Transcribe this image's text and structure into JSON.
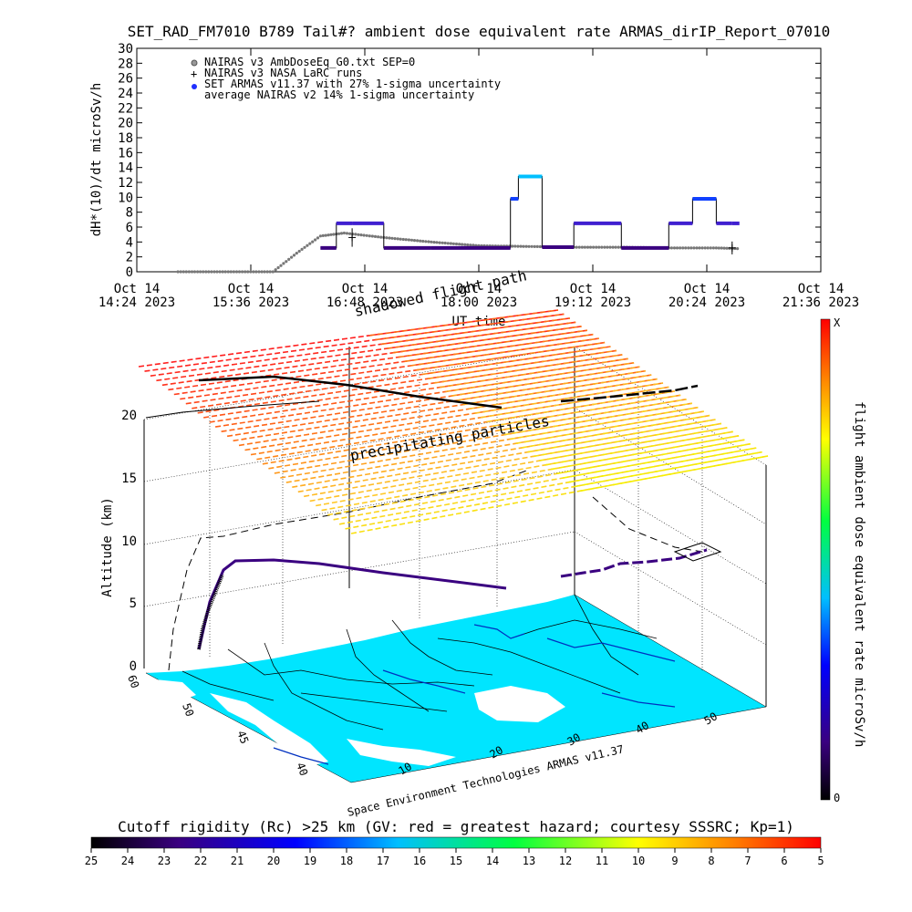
{
  "title": "SET_RAD_FM7010  B789 Tail#? ambient dose equivalent rate ARMAS_dirIP_Report_07010",
  "top_chart": {
    "ylabel": "dH*(10)/dt microSv/h",
    "xlabel": "UT time",
    "legend": [
      "NAIRAS v3 AmbDoseEq_G0.txt SEP=0",
      "NAIRAS v3 NASA LaRC runs",
      "SET ARMAS v11.37 with 27% 1-sigma uncertainty",
      "average NAIRAS v2 14% 1-sigma uncertainty"
    ],
    "y_ticks": [
      "30",
      "28",
      "26",
      "24",
      "22",
      "20",
      "18",
      "16",
      "14",
      "12",
      "10",
      "8",
      "6",
      "4",
      "2",
      "0"
    ],
    "x_ticks": [
      {
        "date": "Oct 14",
        "time": "14:24 2023"
      },
      {
        "date": "Oct 14",
        "time": "15:36 2023"
      },
      {
        "date": "Oct 14",
        "time": "16:48 2023"
      },
      {
        "date": "Oct 14",
        "time": "18:00 2023"
      },
      {
        "date": "Oct 14",
        "time": "19:12 2023"
      },
      {
        "date": "Oct 14",
        "time": "20:24 2023"
      },
      {
        "date": "Oct 14",
        "time": "21:36 2023"
      }
    ]
  },
  "chart_data": {
    "type": "scatter",
    "title": "SET_RAD_FM7010  B789 Tail#? ambient dose equivalent rate ARMAS_dirIP_Report_07010",
    "xlabel": "UT time",
    "ylabel": "dH*(10)/dt microSv/h",
    "ylim": [
      0,
      30
    ],
    "xlim": [
      "2023-10-14T14:24",
      "2023-10-14T21:36"
    ],
    "series": [
      {
        "name": "NAIRAS v3 AmbDoseEq_G0.txt SEP=0",
        "x": [
          "2023-10-14T14:50",
          "2023-10-14T15:20",
          "2023-10-14T15:50",
          "2023-10-14T16:05",
          "2023-10-14T16:20",
          "2023-10-14T16:35",
          "2023-10-14T17:00",
          "2023-10-14T17:30",
          "2023-10-14T18:00",
          "2023-10-14T18:30",
          "2023-10-14T19:00",
          "2023-10-14T19:30",
          "2023-10-14T20:00",
          "2023-10-14T20:30",
          "2023-10-14T20:45"
        ],
        "y": [
          0,
          0,
          0,
          2.5,
          4.8,
          5.2,
          4.6,
          4.0,
          3.5,
          3.4,
          3.3,
          3.3,
          3.2,
          3.2,
          3.1
        ]
      },
      {
        "name": "SET ARMAS v11.37 with 27% 1-sigma uncertainty",
        "x": [
          "2023-10-14T16:20",
          "2023-10-14T16:30",
          "2023-10-14T16:40",
          "2023-10-14T17:00",
          "2023-10-14T17:30",
          "2023-10-14T18:00",
          "2023-10-14T18:20",
          "2023-10-14T18:25",
          "2023-10-14T18:40",
          "2023-10-14T19:00",
          "2023-10-14T19:30",
          "2023-10-14T20:00",
          "2023-10-14T20:15",
          "2023-10-14T20:30",
          "2023-10-14T20:40"
        ],
        "y": [
          3.2,
          6.5,
          6.5,
          3.2,
          3.2,
          3.2,
          9.8,
          12.8,
          3.3,
          6.5,
          3.2,
          6.5,
          9.8,
          6.5,
          6.5
        ]
      },
      {
        "name": "NAIRAS v3 NASA LaRC runs",
        "x": [
          "2023-10-14T16:40",
          "2023-10-14T20:40"
        ],
        "y": [
          4.6,
          3.2
        ]
      }
    ],
    "bottom_3d": {
      "type": "3d-flight-track",
      "annotations": [
        "shadowed flight path",
        "precipitating particles"
      ],
      "z_label": "Altitude (km)",
      "z_ticks": [
        "0",
        "5",
        "10",
        "15",
        "20"
      ],
      "lat_ticks": [
        "60",
        "50",
        "45",
        "40"
      ],
      "lon_ticks": [
        "10",
        "20",
        "30",
        "40",
        "50"
      ],
      "right_colorbar_label": "flight ambient dose equivalent rate microSv/h",
      "right_colorbar_top": "X",
      "right_colorbar_bottom": "0",
      "credit": "Space Environment Technologies ARMAS v11.37",
      "bottom_colorbar_label": "Cutoff rigidity (Rc) >25 km (GV: red = greatest hazard; courtesy SSSRC; Kp=1)",
      "bottom_colorbar_ticks": [
        "25",
        "24",
        "23",
        "22",
        "21",
        "20",
        "19",
        "18",
        "17",
        "16",
        "15",
        "14",
        "13",
        "12",
        "11",
        "10",
        "9",
        "8",
        "7",
        "6",
        "5"
      ]
    }
  }
}
